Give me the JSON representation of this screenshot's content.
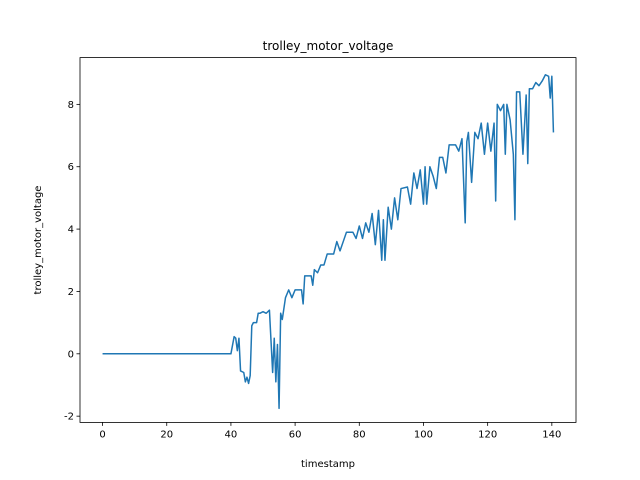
{
  "chart_data": {
    "type": "line",
    "title": "trolley_motor_voltage",
    "xlabel": "timestamp",
    "ylabel": "trolley_motor_voltage",
    "x": [
      0,
      10,
      20,
      30,
      40,
      41,
      41.5,
      42,
      42.5,
      43,
      44,
      44.5,
      45,
      45.5,
      46,
      46.5,
      47,
      48,
      48.5,
      49,
      50,
      51,
      52,
      53,
      53.5,
      54,
      54.5,
      55,
      55.5,
      56,
      57,
      58,
      59,
      60,
      62,
      62.5,
      63,
      65,
      65.5,
      66,
      67,
      68,
      69,
      70,
      72,
      73,
      74,
      75,
      76,
      78,
      79,
      80,
      81,
      82,
      83,
      84,
      85,
      86,
      87,
      87.5,
      88,
      89,
      90,
      91,
      92,
      93,
      95,
      96,
      97,
      98,
      99,
      100,
      100.5,
      101,
      102,
      103,
      104,
      105,
      106,
      107,
      108,
      110,
      111,
      112,
      113,
      113.5,
      114,
      115,
      116,
      117,
      118,
      119,
      120,
      121,
      122,
      122.5,
      123,
      124,
      125,
      125.5,
      126,
      127,
      128,
      128.5,
      129,
      130,
      131,
      132,
      132.5,
      133,
      134,
      135,
      136,
      137,
      138,
      139,
      139.5,
      140,
      140.5
    ],
    "values": [
      0,
      0,
      0,
      0,
      0,
      0.55,
      0.5,
      0.1,
      0.5,
      -0.55,
      -0.6,
      -0.9,
      -0.75,
      -0.95,
      -0.7,
      0.9,
      1.0,
      1.0,
      1.3,
      1.3,
      1.35,
      1.3,
      1.4,
      -0.6,
      0.5,
      -0.9,
      0.3,
      -1.75,
      1.3,
      1.1,
      1.8,
      2.05,
      1.8,
      2.05,
      2.05,
      1.6,
      2.5,
      2.5,
      2.2,
      2.7,
      2.6,
      2.85,
      2.85,
      3.2,
      3.2,
      3.6,
      3.3,
      3.6,
      3.9,
      3.9,
      3.7,
      4.1,
      3.7,
      4.2,
      3.9,
      4.5,
      3.5,
      4.6,
      3.0,
      4.3,
      3.0,
      4.7,
      4.0,
      5.0,
      4.3,
      5.3,
      5.35,
      4.8,
      5.8,
      5.3,
      5.9,
      4.8,
      6.0,
      4.8,
      6.0,
      5.7,
      5.3,
      6.3,
      6.3,
      5.8,
      6.7,
      6.7,
      6.5,
      6.9,
      4.2,
      6.8,
      7.1,
      5.5,
      7.1,
      6.9,
      7.4,
      6.4,
      7.4,
      6.5,
      7.4,
      4.9,
      8.0,
      7.8,
      8.0,
      6.4,
      8.0,
      7.5,
      6.4,
      4.3,
      8.4,
      8.4,
      6.4,
      8.3,
      6.1,
      8.5,
      8.5,
      8.7,
      8.6,
      8.75,
      8.95,
      8.9,
      8.2,
      8.9,
      7.1
    ],
    "color": "#1f77b4",
    "xlim": [
      -7.03,
      147.53
    ],
    "ylim": [
      -2.2,
      9.5
    ],
    "xticks": [
      0,
      20,
      40,
      60,
      80,
      100,
      120,
      140
    ],
    "yticks": [
      -2,
      0,
      2,
      4,
      6,
      8
    ]
  }
}
